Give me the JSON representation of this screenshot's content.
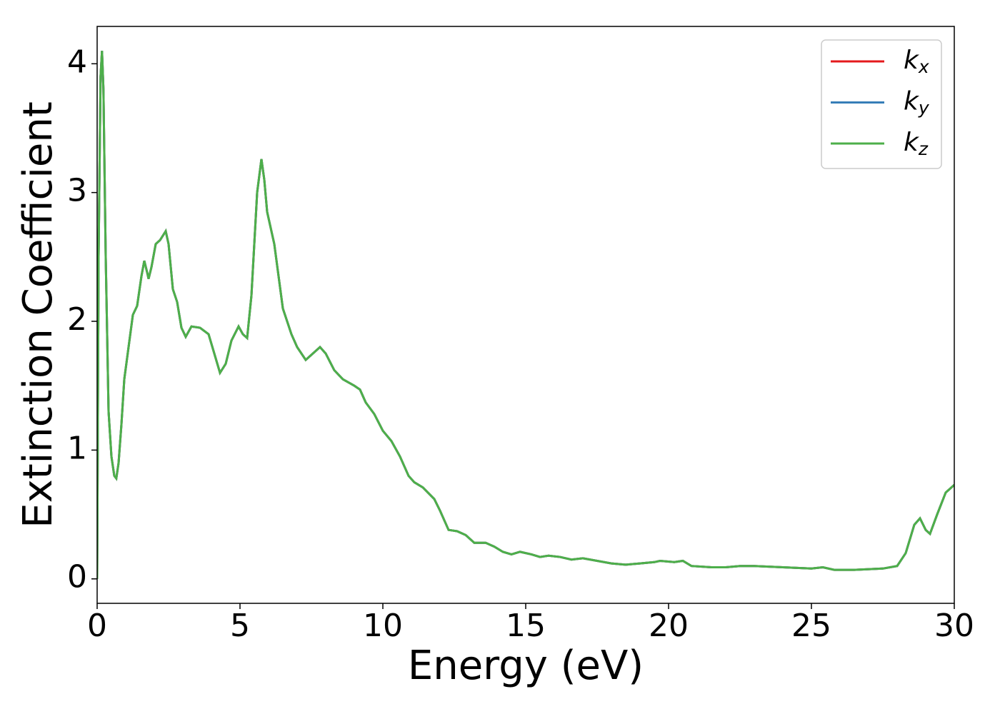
{
  "chart_data": {
    "type": "line",
    "xlabel": "Energy (eV)",
    "ylabel": "Extinction Coefficient",
    "x": [
      0,
      0.05,
      0.12,
      0.17,
      0.22,
      0.3,
      0.4,
      0.5,
      0.6,
      0.67,
      0.75,
      0.85,
      0.95,
      1.1,
      1.25,
      1.4,
      1.55,
      1.65,
      1.75,
      1.8,
      1.9,
      2.05,
      2.2,
      2.4,
      2.5,
      2.65,
      2.8,
      2.95,
      3.1,
      3.3,
      3.6,
      3.9,
      4.1,
      4.3,
      4.5,
      4.7,
      4.95,
      5.1,
      5.25,
      5.4,
      5.6,
      5.75,
      5.85,
      5.95,
      6.2,
      6.5,
      6.8,
      7.0,
      7.3,
      7.55,
      7.8,
      8.0,
      8.3,
      8.6,
      9.0,
      9.2,
      9.4,
      9.7,
      10.0,
      10.3,
      10.6,
      10.9,
      11.1,
      11.4,
      11.8,
      12.0,
      12.3,
      12.6,
      12.9,
      13.2,
      13.6,
      13.9,
      14.2,
      14.5,
      14.8,
      15.2,
      15.5,
      15.8,
      16.2,
      16.6,
      17.0,
      17.5,
      18.0,
      18.5,
      19.0,
      19.5,
      19.7,
      20.2,
      20.5,
      20.8,
      21.5,
      22.0,
      22.5,
      23.0,
      24.0,
      25.0,
      25.4,
      25.8,
      26.5,
      27.5,
      28.0,
      28.3,
      28.6,
      28.8,
      29.0,
      29.15,
      29.4,
      29.7,
      30.0
    ],
    "series": [
      {
        "name": "kx",
        "color": "#e41a1c",
        "values": [
          0,
          2.5,
          3.9,
          4.1,
          3.8,
          2.5,
          1.3,
          0.95,
          0.8,
          0.78,
          0.9,
          1.2,
          1.55,
          1.8,
          2.05,
          2.12,
          2.35,
          2.47,
          2.38,
          2.33,
          2.42,
          2.6,
          2.63,
          2.7,
          2.6,
          2.25,
          2.15,
          1.95,
          1.88,
          1.96,
          1.95,
          1.9,
          1.75,
          1.6,
          1.67,
          1.85,
          1.96,
          1.9,
          1.87,
          2.2,
          3.0,
          3.26,
          3.1,
          2.85,
          2.6,
          2.1,
          1.9,
          1.8,
          1.7,
          1.75,
          1.8,
          1.75,
          1.62,
          1.55,
          1.5,
          1.47,
          1.37,
          1.28,
          1.15,
          1.07,
          0.95,
          0.8,
          0.75,
          0.71,
          0.62,
          0.53,
          0.38,
          0.37,
          0.34,
          0.28,
          0.28,
          0.25,
          0.21,
          0.19,
          0.21,
          0.19,
          0.17,
          0.18,
          0.17,
          0.15,
          0.16,
          0.14,
          0.12,
          0.11,
          0.12,
          0.13,
          0.14,
          0.13,
          0.14,
          0.1,
          0.09,
          0.09,
          0.1,
          0.1,
          0.09,
          0.08,
          0.09,
          0.07,
          0.07,
          0.08,
          0.1,
          0.2,
          0.42,
          0.47,
          0.38,
          0.35,
          0.5,
          0.67,
          0.73
        ]
      },
      {
        "name": "ky",
        "color": "#377eb8",
        "values": [
          0,
          2.5,
          3.9,
          4.1,
          3.8,
          2.5,
          1.3,
          0.95,
          0.8,
          0.78,
          0.9,
          1.2,
          1.55,
          1.8,
          2.05,
          2.12,
          2.35,
          2.47,
          2.38,
          2.33,
          2.42,
          2.6,
          2.63,
          2.7,
          2.6,
          2.25,
          2.15,
          1.95,
          1.88,
          1.96,
          1.95,
          1.9,
          1.75,
          1.6,
          1.67,
          1.85,
          1.96,
          1.9,
          1.87,
          2.2,
          3.0,
          3.26,
          3.1,
          2.85,
          2.6,
          2.1,
          1.9,
          1.8,
          1.7,
          1.75,
          1.8,
          1.75,
          1.62,
          1.55,
          1.5,
          1.47,
          1.37,
          1.28,
          1.15,
          1.07,
          0.95,
          0.8,
          0.75,
          0.71,
          0.62,
          0.53,
          0.38,
          0.37,
          0.34,
          0.28,
          0.28,
          0.25,
          0.21,
          0.19,
          0.21,
          0.19,
          0.17,
          0.18,
          0.17,
          0.15,
          0.16,
          0.14,
          0.12,
          0.11,
          0.12,
          0.13,
          0.14,
          0.13,
          0.14,
          0.1,
          0.09,
          0.09,
          0.1,
          0.1,
          0.09,
          0.08,
          0.09,
          0.07,
          0.07,
          0.08,
          0.1,
          0.2,
          0.42,
          0.47,
          0.38,
          0.35,
          0.5,
          0.67,
          0.73
        ]
      },
      {
        "name": "kz",
        "color": "#4daf4a",
        "values": [
          0,
          2.5,
          3.9,
          4.1,
          3.8,
          2.5,
          1.3,
          0.95,
          0.8,
          0.78,
          0.9,
          1.2,
          1.55,
          1.8,
          2.05,
          2.12,
          2.35,
          2.47,
          2.38,
          2.33,
          2.42,
          2.6,
          2.63,
          2.7,
          2.6,
          2.25,
          2.15,
          1.95,
          1.88,
          1.96,
          1.95,
          1.9,
          1.75,
          1.6,
          1.67,
          1.85,
          1.96,
          1.9,
          1.87,
          2.2,
          3.0,
          3.26,
          3.1,
          2.85,
          2.6,
          2.1,
          1.9,
          1.8,
          1.7,
          1.75,
          1.8,
          1.75,
          1.62,
          1.55,
          1.5,
          1.47,
          1.37,
          1.28,
          1.15,
          1.07,
          0.95,
          0.8,
          0.75,
          0.71,
          0.62,
          0.53,
          0.38,
          0.37,
          0.34,
          0.28,
          0.28,
          0.25,
          0.21,
          0.19,
          0.21,
          0.19,
          0.17,
          0.18,
          0.17,
          0.15,
          0.16,
          0.14,
          0.12,
          0.11,
          0.12,
          0.13,
          0.14,
          0.13,
          0.14,
          0.1,
          0.09,
          0.09,
          0.1,
          0.1,
          0.09,
          0.08,
          0.09,
          0.07,
          0.07,
          0.08,
          0.1,
          0.2,
          0.42,
          0.47,
          0.38,
          0.35,
          0.5,
          0.67,
          0.73
        ]
      }
    ],
    "xlim": [
      0,
      30
    ],
    "xticks": [
      0,
      5,
      10,
      15,
      20,
      25,
      30
    ],
    "ylim": [
      -0.19,
      4.29
    ],
    "yticks": [
      0,
      1,
      2,
      3,
      4
    ],
    "grid": false,
    "legend": "upper right"
  }
}
